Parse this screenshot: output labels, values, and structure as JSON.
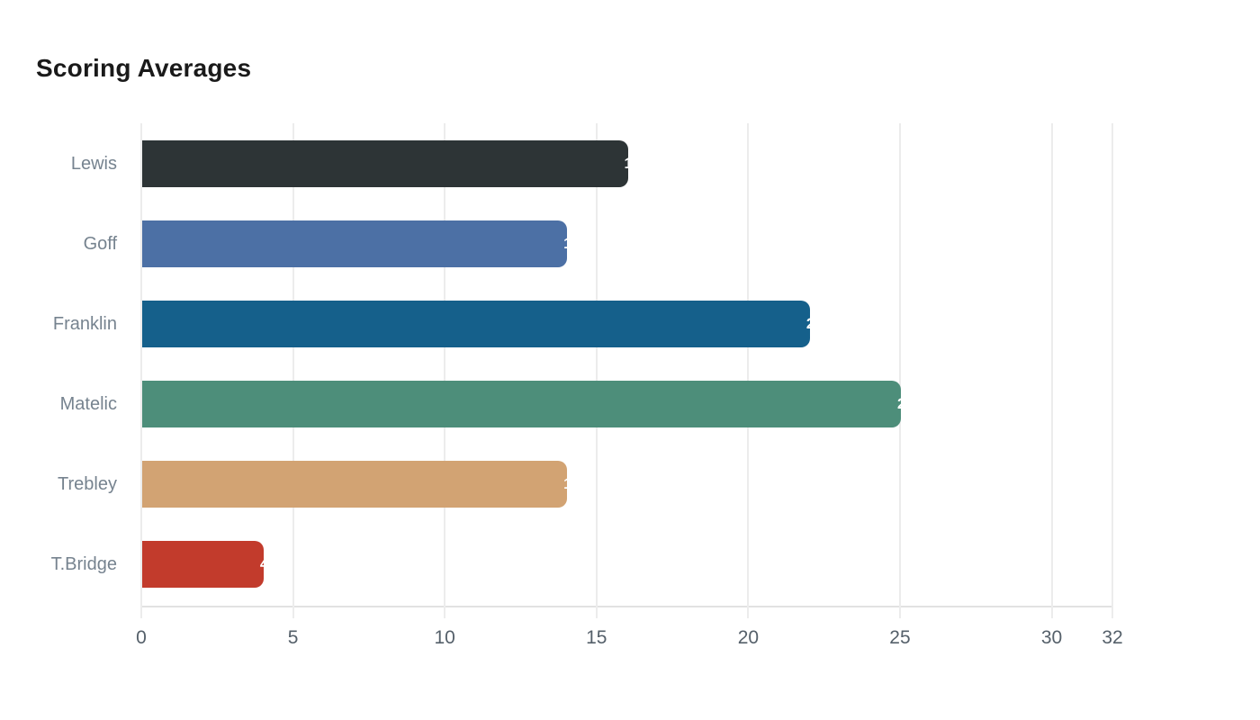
{
  "title": "Scoring Averages",
  "chart_data": {
    "type": "bar",
    "orientation": "horizontal",
    "title": "Scoring Averages",
    "categories": [
      "Lewis",
      "Goff",
      "Franklin",
      "Matelic",
      "Trebley",
      "T.Bridge"
    ],
    "values": [
      16,
      14,
      22,
      25,
      14,
      4
    ],
    "bar_colors": [
      "#2d3436",
      "#4c70a5",
      "#15608b",
      "#4d8e7a",
      "#d2a373",
      "#c23b2c"
    ],
    "value_labels": [
      "16",
      "14",
      "22",
      "25",
      "14",
      "4"
    ],
    "value_label_color": "#ffffff",
    "xlabel": "",
    "ylabel": "",
    "xlim": [
      0,
      32
    ],
    "xticks": [
      0,
      5,
      10,
      15,
      20,
      25,
      30,
      32
    ],
    "grid": true,
    "gridlines": "vertical",
    "legend": "none"
  },
  "colors": {
    "background": "#ffffff",
    "grid": "#ececec",
    "axis": "#e2e2e2",
    "title": "#1a1a1a",
    "category_label": "#76838f",
    "tick_label": "#55606a"
  }
}
